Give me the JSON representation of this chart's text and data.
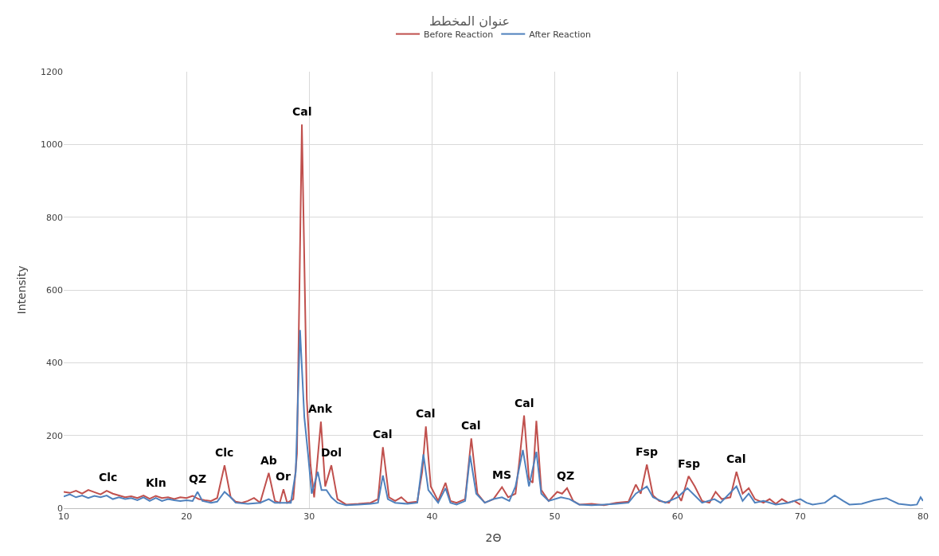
{
  "chart_data": {
    "type": "line",
    "title": "عنوان المخطط",
    "xlabel": "2Θ",
    "ylabel": "Intensity",
    "xlim": [
      10,
      80
    ],
    "xticks": [
      10,
      20,
      30,
      40,
      50,
      60,
      70,
      80
    ],
    "ylim": [
      0,
      1200
    ],
    "yticks": [
      0,
      200,
      400,
      600,
      800,
      1000,
      1200
    ],
    "grid": true,
    "legend": "top",
    "line_style": "solid",
    "marker": "none",
    "series": [
      {
        "name": "Before Reaction",
        "color": "#c0504d",
        "x": [
          10,
          10.5,
          11,
          11.5,
          12,
          12.5,
          13,
          13.5,
          14,
          14.5,
          15,
          15.5,
          16,
          16.5,
          17,
          17.5,
          18,
          18.5,
          19,
          19.5,
          20,
          20.5,
          21,
          21.5,
          22,
          22.5,
          23.1,
          23.6,
          24,
          24.5,
          25,
          25.5,
          26,
          26.7,
          27.2,
          27.6,
          27.9,
          28.2,
          28.7,
          29.0,
          29.4,
          29.8,
          30.1,
          30.4,
          30.95,
          31.3,
          31.8,
          32.3,
          33,
          34,
          35,
          35.6,
          36.0,
          36.5,
          37,
          37.5,
          38,
          38.8,
          39.2,
          39.5,
          39.9,
          40.5,
          41.1,
          41.5,
          42,
          42.7,
          43.2,
          43.7,
          44.3,
          45,
          45.7,
          46.2,
          46.8,
          47.1,
          47.5,
          47.9,
          48.2,
          48.5,
          48.9,
          49.5,
          50.2,
          50.6,
          51.0,
          51.5,
          52,
          53,
          54,
          55,
          56,
          56.6,
          57,
          57.5,
          58,
          58.5,
          59.3,
          59.9,
          60.3,
          60.9,
          61.4,
          62,
          62.6,
          63.1,
          63.6,
          64.3,
          64.8,
          65.3,
          65.8,
          66.3,
          67,
          67.5,
          68,
          68.5,
          69,
          69.5,
          70
        ],
        "values": [
          45,
          42,
          48,
          40,
          50,
          44,
          38,
          48,
          40,
          35,
          30,
          33,
          28,
          35,
          26,
          34,
          28,
          30,
          25,
          30,
          28,
          34,
          25,
          22,
          20,
          28,
          118,
          30,
          18,
          15,
          20,
          28,
          15,
          97,
          20,
          15,
          52,
          15,
          25,
          150,
          1055,
          300,
          120,
          30,
          238,
          60,
          118,
          25,
          10,
          12,
          15,
          25,
          168,
          30,
          20,
          30,
          15,
          18,
          100,
          225,
          60,
          20,
          70,
          20,
          15,
          25,
          192,
          40,
          15,
          25,
          58,
          30,
          40,
          125,
          255,
          80,
          70,
          240,
          50,
          20,
          45,
          40,
          55,
          20,
          10,
          12,
          8,
          15,
          18,
          65,
          40,
          120,
          35,
          20,
          15,
          45,
          20,
          88,
          60,
          20,
          15,
          45,
          25,
          30,
          100,
          40,
          55,
          25,
          15,
          25,
          12,
          25,
          15,
          20,
          10
        ]
      },
      {
        "name": "After Reaction",
        "color": "#4f81bd",
        "x": [
          10,
          10.5,
          11,
          11.5,
          12,
          12.5,
          13,
          13.5,
          14,
          14.5,
          15,
          15.5,
          16,
          16.5,
          17,
          17.5,
          18,
          18.5,
          19,
          19.5,
          20,
          20.5,
          20.9,
          21.3,
          22,
          22.5,
          23.1,
          23.6,
          24,
          25,
          26,
          26.7,
          27.2,
          27.9,
          28.5,
          28.9,
          29.25,
          29.6,
          29.9,
          30.2,
          30.7,
          31.0,
          31.4,
          31.8,
          32.3,
          33,
          34,
          35,
          35.6,
          36.0,
          36.4,
          37,
          38,
          38.8,
          39.3,
          39.7,
          40.5,
          41.1,
          41.5,
          42,
          42.7,
          43.1,
          43.6,
          44.3,
          45,
          45.7,
          46.3,
          46.8,
          47.4,
          47.9,
          48.5,
          48.9,
          49.5,
          50.5,
          51.2,
          52,
          53,
          54,
          55,
          56,
          56.6,
          57.5,
          58,
          59,
          60,
          60.8,
          61.4,
          62,
          63,
          63.5,
          64.8,
          65.3,
          65.8,
          66.3,
          67,
          68,
          69,
          70,
          70.5,
          71,
          72,
          72.8,
          73.5,
          74,
          75,
          76,
          77,
          77.5,
          78,
          79,
          79.5,
          79.8,
          80
        ],
        "values": [
          32,
          38,
          30,
          35,
          28,
          34,
          30,
          35,
          25,
          30,
          25,
          28,
          22,
          30,
          20,
          28,
          20,
          25,
          22,
          20,
          22,
          20,
          45,
          20,
          15,
          18,
          45,
          30,
          15,
          12,
          15,
          25,
          15,
          15,
          15,
          100,
          490,
          250,
          150,
          40,
          100,
          50,
          50,
          30,
          15,
          8,
          10,
          12,
          15,
          90,
          25,
          15,
          12,
          15,
          148,
          50,
          15,
          55,
          15,
          10,
          20,
          145,
          40,
          15,
          25,
          30,
          20,
          60,
          160,
          60,
          155,
          40,
          20,
          30,
          25,
          10,
          8,
          10,
          12,
          15,
          40,
          60,
          30,
          15,
          30,
          55,
          35,
          15,
          25,
          15,
          60,
          20,
          40,
          15,
          20,
          10,
          15,
          25,
          15,
          10,
          15,
          35,
          20,
          10,
          12,
          22,
          28,
          20,
          12,
          8,
          10,
          30,
          20
        ]
      }
    ],
    "annotations": [
      {
        "text": "Clc",
        "x": 13.6,
        "y": 50
      },
      {
        "text": "Kln",
        "x": 17.5,
        "y": 35
      },
      {
        "text": "QZ",
        "x": 20.9,
        "y": 45
      },
      {
        "text": "Clc",
        "x": 23.1,
        "y": 118
      },
      {
        "text": "Ab",
        "x": 26.7,
        "y": 97
      },
      {
        "text": "Or",
        "x": 27.9,
        "y": 52
      },
      {
        "text": "Cal",
        "x": 29.4,
        "y": 1055
      },
      {
        "text": "Ank",
        "x": 30.95,
        "y": 238
      },
      {
        "text": "Dol",
        "x": 31.8,
        "y": 118
      },
      {
        "text": "Cal",
        "x": 36.0,
        "y": 168
      },
      {
        "text": "Cal",
        "x": 39.5,
        "y": 225
      },
      {
        "text": "Cal",
        "x": 43.2,
        "y": 192
      },
      {
        "text": "MS",
        "x": 45.7,
        "y": 58
      },
      {
        "text": "Cal",
        "x": 47.5,
        "y": 255
      },
      {
        "text": "QZ",
        "x": 50.9,
        "y": 55
      },
      {
        "text": "Fsp",
        "x": 57.5,
        "y": 120
      },
      {
        "text": "Fsp",
        "x": 60.9,
        "y": 88
      },
      {
        "text": "Cal",
        "x": 64.8,
        "y": 100
      }
    ]
  }
}
